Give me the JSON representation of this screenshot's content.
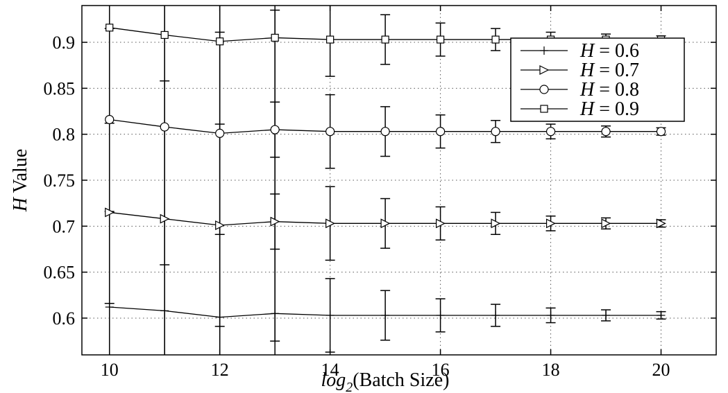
{
  "chart_data": {
    "type": "line",
    "xlabel_base": "log",
    "xlabel_sub": "2",
    "xlabel_rest": "(Batch Size)",
    "ylabel_var": "H",
    "ylabel_rest": " Value",
    "xlim": [
      9.5,
      21.0
    ],
    "ylim": [
      0.56,
      0.94
    ],
    "x_ticks": [
      10,
      12,
      14,
      16,
      18,
      20
    ],
    "y_ticks": [
      0.6,
      0.65,
      0.7,
      0.75,
      0.8,
      0.85,
      0.9
    ],
    "y_tick_labels": [
      "0.6",
      "0.65",
      "0.7",
      "0.75",
      "0.8",
      "0.85",
      "0.9"
    ],
    "x_tick_labels": [
      "10",
      "12",
      "14",
      "16",
      "18",
      "20"
    ],
    "grid": true,
    "legend_position": "top-right",
    "x": [
      10,
      11,
      12,
      13,
      14,
      15,
      16,
      17,
      18,
      19,
      20
    ],
    "error_bars": [
      0.2,
      0.25,
      0.21,
      0.13,
      0.04,
      0.027,
      0.018,
      0.012,
      0.008,
      0.006,
      0.004
    ],
    "series": [
      {
        "name_var": "H",
        "name_rest": " = 0.6",
        "marker": "plus",
        "values": [
          0.612,
          0.608,
          0.601,
          0.605,
          0.603,
          0.603,
          0.603,
          0.603,
          0.603,
          0.603,
          0.603
        ]
      },
      {
        "name_var": "H",
        "name_rest": " = 0.7",
        "marker": "triangle-right",
        "values": [
          0.715,
          0.708,
          0.701,
          0.705,
          0.703,
          0.703,
          0.703,
          0.703,
          0.703,
          0.703,
          0.703
        ]
      },
      {
        "name_var": "H",
        "name_rest": " = 0.8",
        "marker": "circle",
        "values": [
          0.816,
          0.808,
          0.801,
          0.805,
          0.803,
          0.803,
          0.803,
          0.803,
          0.803,
          0.803,
          0.803
        ]
      },
      {
        "name_var": "H",
        "name_rest": " = 0.9",
        "marker": "square",
        "values": [
          0.916,
          0.908,
          0.901,
          0.905,
          0.903,
          0.903,
          0.903,
          0.903,
          0.903,
          0.903,
          0.903
        ]
      }
    ]
  }
}
